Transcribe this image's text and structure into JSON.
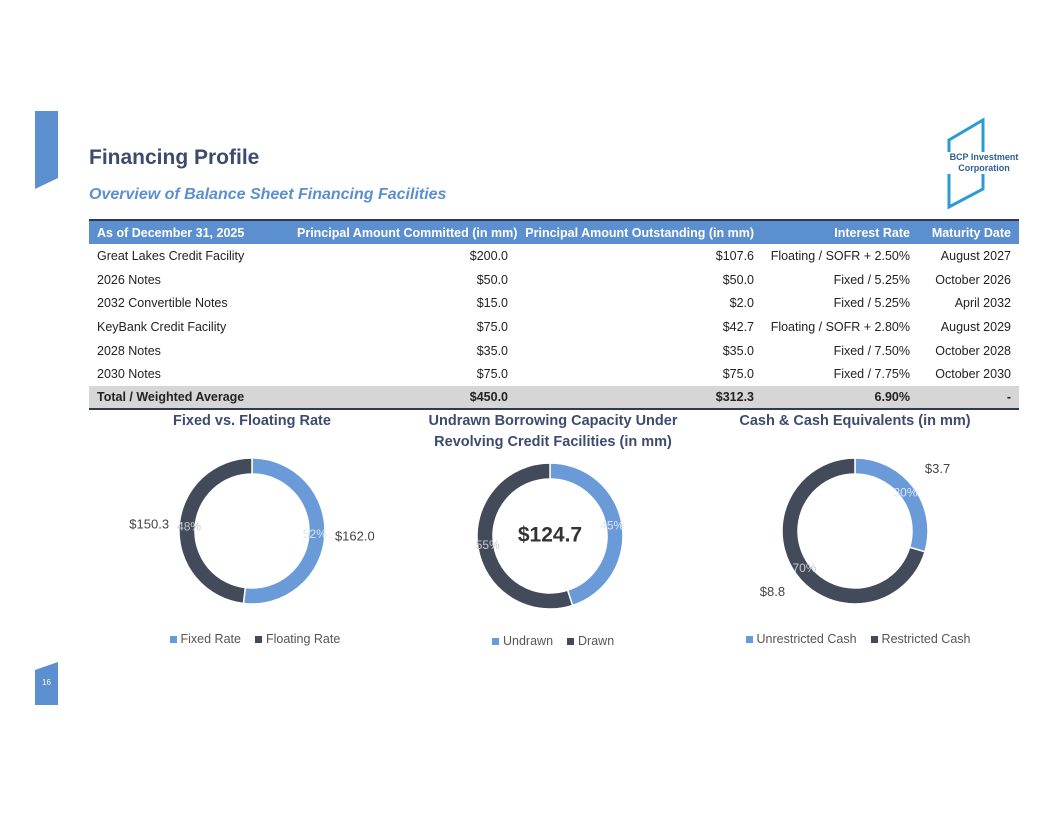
{
  "header": {
    "title": "Financing Profile",
    "subtitle": "Overview of Balance Sheet Financing Facilities"
  },
  "logo": {
    "lines": [
      "BCP Investment",
      "Corporation"
    ]
  },
  "table": {
    "columns": [
      "As of December 31, 2025",
      "Principal Amount Committed (in mm)",
      "Principal Amount Outstanding (in mm)",
      "Interest Rate",
      "Maturity Date"
    ],
    "rows": [
      [
        "Great Lakes Credit Facility",
        "$200.0",
        "$107.6",
        "Floating / SOFR + 2.50%",
        "August 2027"
      ],
      [
        "2026 Notes",
        "$50.0",
        "$50.0",
        "Fixed / 5.25%",
        "October 2026"
      ],
      [
        "2032 Convertible Notes",
        "$15.0",
        "$2.0",
        "Fixed / 5.25%",
        "April 2032"
      ],
      [
        "KeyBank Credit Facility",
        "$75.0",
        "$42.7",
        "Floating / SOFR + 2.80%",
        "August 2029"
      ],
      [
        "2028 Notes",
        "$35.0",
        "$35.0",
        "Fixed / 7.50%",
        "October 2028"
      ],
      [
        "2030 Notes",
        "$75.0",
        "$75.0",
        "Fixed / 7.75%",
        "October 2030"
      ]
    ],
    "total": [
      "Total / Weighted Average",
      "$450.0",
      "$312.3",
      "6.90%",
      "-"
    ]
  },
  "chart_data": [
    {
      "type": "pie",
      "title": "Fixed vs. Floating Rate",
      "categories": [
        "Fixed Rate",
        "Floating Rate"
      ],
      "values": [
        162.0,
        150.3
      ],
      "value_labels": [
        "$162.0",
        "$150.3"
      ],
      "percents": [
        52,
        48
      ],
      "percent_labels": [
        "52%",
        "48%"
      ],
      "colors": [
        "#6a9bd8",
        "#434a5a"
      ]
    },
    {
      "type": "pie",
      "title": "Undrawn Borrowing Capacity Under Revolving Credit Facilities (in mm)",
      "categories": [
        "Undrawn",
        "Drawn"
      ],
      "values": [
        45,
        55
      ],
      "value_labels": [
        "45%",
        "55%"
      ],
      "center_label": "$124.7",
      "colors": [
        "#6a9bd8",
        "#434a5a"
      ]
    },
    {
      "type": "pie",
      "title": "Cash & Cash Equivalents (in mm)",
      "categories": [
        "Unrestricted Cash",
        "Restricted Cash"
      ],
      "values": [
        3.7,
        8.8
      ],
      "value_labels": [
        "$3.7",
        "$8.8"
      ],
      "percents": [
        30,
        70
      ],
      "percent_labels": [
        "30%",
        "70%"
      ],
      "colors": [
        "#6a9bd8",
        "#434a5a"
      ]
    }
  ],
  "page_number": "16"
}
